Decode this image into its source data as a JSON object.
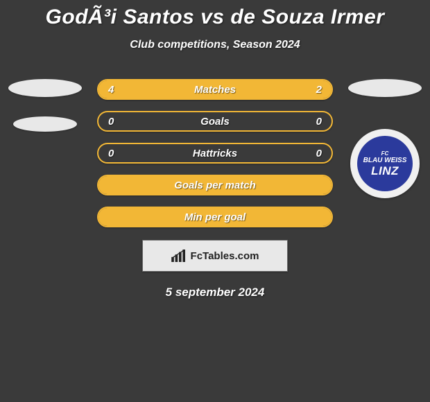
{
  "title": "GodÃ³i Santos vs de Souza Irmer",
  "subtitle": "Club competitions, Season 2024",
  "date": "5 september 2024",
  "brand": "FcTables.com",
  "club_badge": {
    "line1": "FC",
    "line2": "BLAU WEISS",
    "line3": "LINZ",
    "bg_color": "#2b3a9c",
    "outer_bg": "#f0f0f0"
  },
  "colors": {
    "background": "#3a3a3a",
    "ellipse": "#e8e8e8",
    "brand_box_bg": "#e8e8e8",
    "brand_text": "#222222"
  },
  "rows": [
    {
      "label": "Matches",
      "left_value": "4",
      "right_value": "2",
      "left_fill_pct": 66.7,
      "right_fill_pct": 33.3,
      "border_color": "#f2b736",
      "left_fill_color": "#f2b736",
      "right_fill_color": "#f2b736",
      "show_values": true
    },
    {
      "label": "Goals",
      "left_value": "0",
      "right_value": "0",
      "left_fill_pct": 0,
      "right_fill_pct": 0,
      "border_color": "#f2b736",
      "left_fill_color": "#f2b736",
      "right_fill_color": "#f2b736",
      "show_values": true
    },
    {
      "label": "Hattricks",
      "left_value": "0",
      "right_value": "0",
      "left_fill_pct": 0,
      "right_fill_pct": 0,
      "border_color": "#f2b736",
      "left_fill_color": "#f2b736",
      "right_fill_color": "#f2b736",
      "show_values": true
    },
    {
      "label": "Goals per match",
      "left_value": "",
      "right_value": "",
      "left_fill_pct": 100,
      "right_fill_pct": 0,
      "border_color": "#f2b736",
      "left_fill_color": "#f2b736",
      "right_fill_color": "#f2b736",
      "show_values": false
    },
    {
      "label": "Min per goal",
      "left_value": "",
      "right_value": "",
      "left_fill_pct": 100,
      "right_fill_pct": 0,
      "border_color": "#f2b736",
      "left_fill_color": "#f2b736",
      "right_fill_color": "#f2b736",
      "show_values": false
    }
  ]
}
